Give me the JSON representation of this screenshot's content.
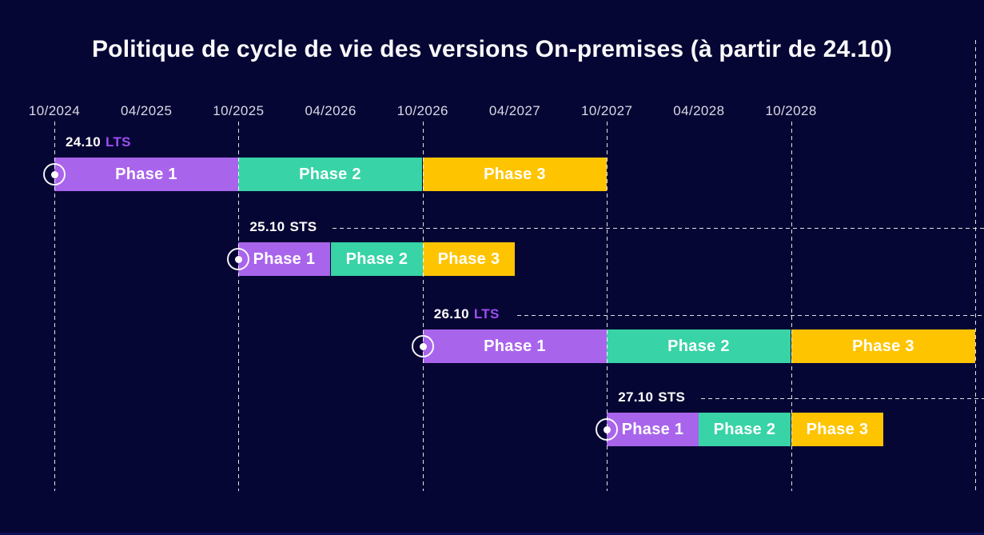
{
  "chart_data": {
    "type": "bar",
    "subtype": "gantt-timeline",
    "title": "Politique de cycle de vie des versions On-premises (à partir de 24.10)",
    "x_axis": {
      "ticks": [
        "10/2024",
        "04/2025",
        "10/2025",
        "04/2026",
        "10/2026",
        "04/2027",
        "10/2027",
        "04/2028",
        "10/2028"
      ],
      "unit": "month/year",
      "grid": "dashed vertical lines on October ticks"
    },
    "year_gridlines": [
      "10/2024",
      "10/2025",
      "10/2026",
      "10/2027",
      "10/2028",
      "10/2029"
    ],
    "rows": [
      {
        "version": "24.10",
        "badge": "LTS",
        "dashed_line_to_right_edge": false,
        "phases": [
          {
            "name": "Phase 1",
            "start": "10/2024",
            "end": "10/2025"
          },
          {
            "name": "Phase 2",
            "start": "10/2025",
            "end": "10/2026"
          },
          {
            "name": "Phase 3",
            "start": "10/2026",
            "end": "10/2027"
          }
        ]
      },
      {
        "version": "25.10",
        "badge": "STS",
        "dashed_line_to_right_edge": true,
        "phases": [
          {
            "name": "Phase 1",
            "start": "10/2025",
            "end": "04/2026"
          },
          {
            "name": "Phase 2",
            "start": "04/2026",
            "end": "10/2026"
          },
          {
            "name": "Phase 3",
            "start": "10/2026",
            "end": "04/2027"
          }
        ]
      },
      {
        "version": "26.10",
        "badge": "LTS",
        "dashed_line_to_right_edge": true,
        "phases": [
          {
            "name": "Phase 1",
            "start": "10/2026",
            "end": "10/2027"
          },
          {
            "name": "Phase 2",
            "start": "10/2027",
            "end": "10/2028"
          },
          {
            "name": "Phase 3",
            "start": "10/2028",
            "end": "10/2029"
          }
        ]
      },
      {
        "version": "27.10",
        "badge": "STS",
        "dashed_line_to_right_edge": true,
        "phases": [
          {
            "name": "Phase 1",
            "start": "10/2027",
            "end": "04/2028"
          },
          {
            "name": "Phase 2",
            "start": "04/2028",
            "end": "10/2028"
          },
          {
            "name": "Phase 3",
            "start": "10/2028",
            "end": "04/2029"
          }
        ]
      }
    ],
    "icons": {
      "release_start": "circled-dot-icon"
    },
    "colors": {
      "background": "#060634",
      "phase1": "#a964ec",
      "phase2": "#38d3a6",
      "phase3": "#ffc400",
      "badge_lts": "#9c4ff2",
      "badge_sts": "#ffffff",
      "text": "#ffffff",
      "gridline": "#ffffff"
    },
    "layout_hints": {
      "legend": "none",
      "orientation": "horizontal"
    }
  }
}
